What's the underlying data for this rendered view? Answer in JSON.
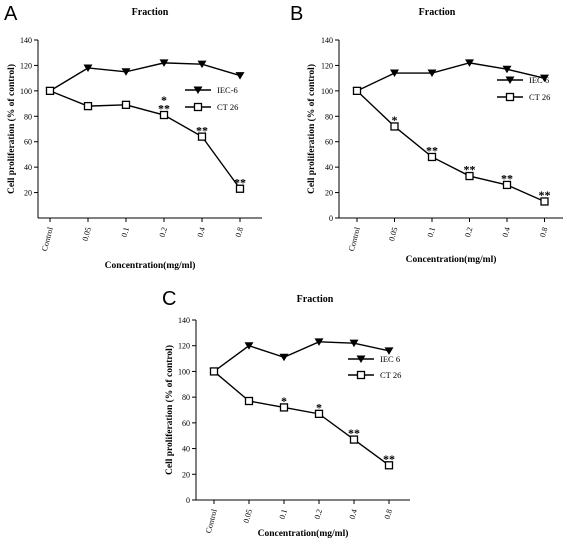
{
  "chart_data": [
    {
      "panel": "A",
      "type": "line",
      "title": "Fraction",
      "xlabel": "Concentration(mg/ml)",
      "ylabel": "Cell proliferation (% of control)",
      "categories": [
        "Control",
        "0.05",
        "0.1",
        "0.2",
        "0.4",
        "0.8"
      ],
      "ylim": [
        0,
        140
      ],
      "yticks": [
        20,
        40,
        60,
        80,
        100,
        120,
        140
      ],
      "legend_position": "right",
      "series": [
        {
          "name": "IEC-6",
          "marker": "triangle-down",
          "values": [
            100,
            118,
            115,
            122,
            121,
            112
          ]
        },
        {
          "name": "CT 26",
          "marker": "square",
          "values": [
            100,
            88,
            89,
            81,
            64,
            23
          ]
        }
      ],
      "annotations": [
        {
          "category": "0.2",
          "y": 93,
          "text": "*"
        },
        {
          "category": "0.2",
          "y": 86,
          "text": "**"
        },
        {
          "category": "0.4",
          "y": 69,
          "text": "**"
        },
        {
          "category": "0.8",
          "y": 28,
          "text": "**"
        }
      ]
    },
    {
      "panel": "B",
      "type": "line",
      "title": "Fraction",
      "xlabel": "Concentration(mg/ml)",
      "ylabel": "Cell proliferation (% of control)",
      "categories": [
        "Control",
        "0.05",
        "0.1",
        "0.2",
        "0.4",
        "0.8"
      ],
      "ylim": [
        0,
        140
      ],
      "yticks": [
        0,
        20,
        40,
        60,
        80,
        100,
        120,
        140
      ],
      "legend_position": "right",
      "series": [
        {
          "name": "IEC 6",
          "marker": "triangle-down",
          "values": [
            100,
            114,
            114,
            122,
            117,
            110
          ]
        },
        {
          "name": "CT 26",
          "marker": "square",
          "values": [
            100,
            72,
            48,
            33,
            26,
            13
          ]
        }
      ],
      "annotations": [
        {
          "category": "0.05",
          "y": 77,
          "text": "*"
        },
        {
          "category": "0.1",
          "y": 53,
          "text": "**"
        },
        {
          "category": "0.2",
          "y": 38,
          "text": "**"
        },
        {
          "category": "0.4",
          "y": 31,
          "text": "**"
        },
        {
          "category": "0.8",
          "y": 18,
          "text": "**"
        }
      ]
    },
    {
      "panel": "C",
      "type": "line",
      "title": "Fraction",
      "xlabel": "Concentration(mg/ml)",
      "ylabel": "Cell proliferation (% of control)",
      "categories": [
        "Control",
        "0.05",
        "0.1",
        "0.2",
        "0.4",
        "0.8"
      ],
      "ylim": [
        0,
        140
      ],
      "yticks": [
        0,
        20,
        40,
        60,
        80,
        100,
        120,
        140
      ],
      "legend_position": "right",
      "series": [
        {
          "name": "IEC 6",
          "marker": "triangle-down",
          "values": [
            100,
            120,
            111,
            123,
            122,
            116
          ]
        },
        {
          "name": "CT 26",
          "marker": "square",
          "values": [
            100,
            77,
            72,
            67,
            47,
            27
          ]
        }
      ],
      "annotations": [
        {
          "category": "0.1",
          "y": 77,
          "text": "*"
        },
        {
          "category": "0.2",
          "y": 72,
          "text": "*"
        },
        {
          "category": "0.4",
          "y": 52,
          "text": "**"
        },
        {
          "category": "0.8",
          "y": 32,
          "text": "**"
        }
      ]
    }
  ]
}
